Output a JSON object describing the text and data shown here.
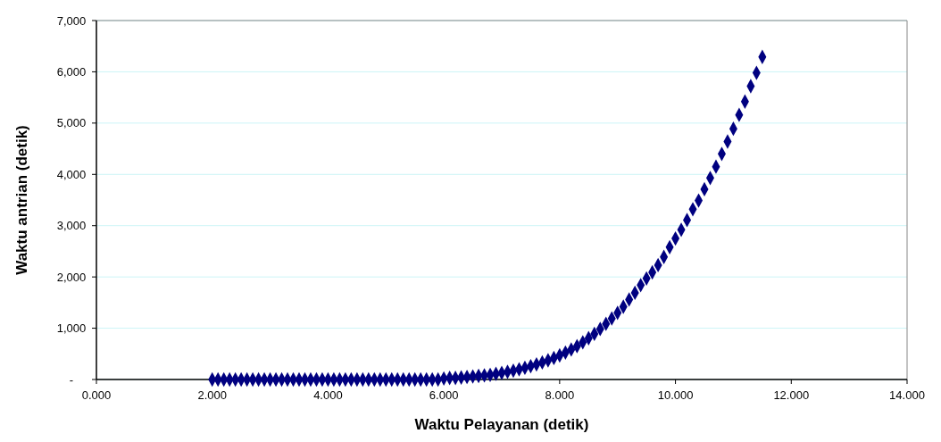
{
  "chart_data": {
    "type": "scatter",
    "xlabel": "Waktu Pelayanan (detik)",
    "ylabel": "Waktu antrian (detik)",
    "x": [
      2,
      2.1,
      2.2,
      2.3,
      2.4,
      2.5,
      2.6,
      2.7,
      2.8,
      2.9,
      3,
      3.1,
      3.2,
      3.3,
      3.4,
      3.5,
      3.6,
      3.7,
      3.8,
      3.9,
      4,
      4.1,
      4.2,
      4.3,
      4.4,
      4.5,
      4.6,
      4.7,
      4.8,
      4.9,
      5,
      5.1,
      5.2,
      5.3,
      5.4,
      5.5,
      5.6,
      5.7,
      5.8,
      5.9,
      6,
      6.1,
      6.2,
      6.3,
      6.4,
      6.5,
      6.6,
      6.7,
      6.8,
      6.9,
      7,
      7.1,
      7.2,
      7.3,
      7.4,
      7.5,
      7.6,
      7.7,
      7.8,
      7.9,
      8,
      8.1,
      8.2,
      8.3,
      8.4,
      8.5,
      8.6,
      8.7,
      8.8,
      8.9,
      9,
      9.1,
      9.2,
      9.3,
      9.4,
      9.5,
      9.6,
      9.7,
      9.8,
      9.9,
      10,
      10.1,
      10.2,
      10.3,
      10.4,
      10.5,
      10.6,
      10.7,
      10.8,
      10.9,
      11,
      11.1,
      11.2,
      11.3,
      11.4,
      11.5
    ],
    "series": [
      {
        "color": "#000080",
        "values": [
          0,
          0,
          0,
          0,
          0,
          0,
          0,
          0,
          0,
          0,
          0,
          0,
          0,
          0,
          0,
          0,
          0,
          0,
          0,
          0,
          0,
          0,
          0,
          0,
          0,
          0,
          0,
          0,
          0,
          0,
          0,
          0,
          0,
          0,
          0,
          0,
          0,
          0,
          0,
          0,
          20,
          30,
          30,
          40,
          50,
          60,
          70,
          80,
          90,
          110,
          129,
          150,
          173,
          199,
          228,
          260,
          295,
          333,
          375,
          420,
          470,
          525,
          585,
          650,
          725,
          805,
          890,
          985,
          1085,
          1190,
          1300,
          1420,
          1560,
          1690,
          1840,
          1970,
          2090,
          2230,
          2390,
          2580,
          2750,
          2920,
          3110,
          3320,
          3490,
          3710,
          3930,
          4150,
          4400,
          4640,
          4890,
          5160,
          5420,
          5720,
          5980,
          6290
        ]
      }
    ],
    "xlim": [
      0,
      14
    ],
    "xticks": [
      {
        "value": 0,
        "label": "0.000"
      },
      {
        "value": 2,
        "label": "2.000"
      },
      {
        "value": 4,
        "label": "4.000"
      },
      {
        "value": 6,
        "label": "6.000"
      },
      {
        "value": 8,
        "label": "8.000"
      },
      {
        "value": 10,
        "label": "10.000"
      },
      {
        "value": 12,
        "label": "12.000"
      },
      {
        "value": 14,
        "label": "14.000"
      }
    ],
    "ylim": [
      0,
      7000
    ],
    "yticks": [
      {
        "value": 0,
        "label": "-"
      },
      {
        "value": 1000,
        "label": "1,000"
      },
      {
        "value": 2000,
        "label": "2,000"
      },
      {
        "value": 3000,
        "label": "3,000"
      },
      {
        "value": 4000,
        "label": "4,000"
      },
      {
        "value": 5000,
        "label": "5,000"
      },
      {
        "value": 6000,
        "label": "6,000"
      },
      {
        "value": 7000,
        "label": "7,000"
      }
    ],
    "grid": "y",
    "marker": "diamond"
  }
}
